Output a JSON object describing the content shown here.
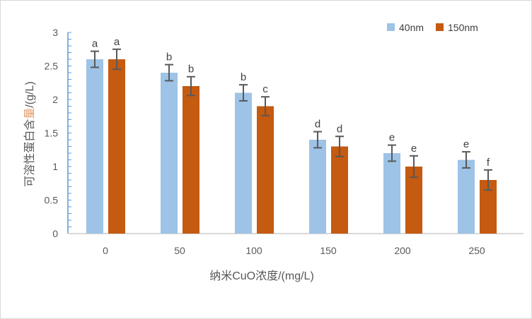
{
  "chart_data": {
    "type": "bar",
    "title": "",
    "xlabel": "纳米CuO浓度/(mg/L)",
    "ylabel_parts": [
      "可溶性蛋白含",
      "量",
      "/(g/L)"
    ],
    "ylim": [
      0,
      3
    ],
    "yticks": [
      "0",
      "0.5",
      "1",
      "1.5",
      "2",
      "2.5",
      "3"
    ],
    "categories": [
      "0",
      "50",
      "100",
      "150",
      "200",
      "250"
    ],
    "legend_position": "top-right",
    "series": [
      {
        "name": "40nm",
        "color": "#9DC3E6",
        "values": [
          2.6,
          2.4,
          2.1,
          1.4,
          1.2,
          1.1
        ],
        "errors": [
          0.12,
          0.12,
          0.12,
          0.12,
          0.12,
          0.12
        ],
        "letters": [
          "a",
          "b",
          "b",
          "d",
          "e",
          "e"
        ]
      },
      {
        "name": "150nm",
        "color": "#C55A11",
        "values": [
          2.6,
          2.2,
          1.9,
          1.3,
          1.0,
          0.8
        ],
        "errors": [
          0.15,
          0.14,
          0.14,
          0.15,
          0.16,
          0.15
        ],
        "letters": [
          "a",
          "b",
          "c",
          "d",
          "e",
          "f"
        ]
      }
    ]
  }
}
